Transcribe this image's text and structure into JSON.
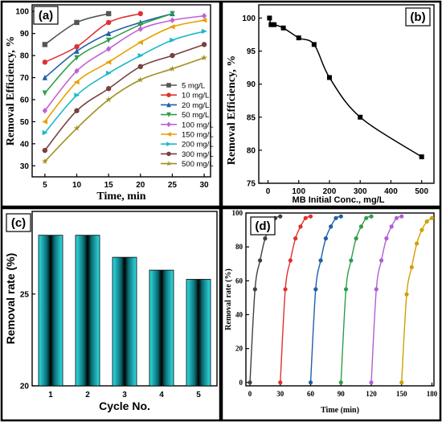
{
  "chart_data": [
    {
      "panel": "(a)",
      "type": "line",
      "xlabel": "Time, min",
      "ylabel": "Removal Efficiency, %",
      "x_ticks": [
        5,
        10,
        15,
        20,
        25,
        30
      ],
      "y_ticks": [
        30,
        40,
        50,
        60,
        70,
        80,
        90,
        100
      ],
      "xlim": [
        3,
        31
      ],
      "ylim": [
        25,
        103
      ],
      "legend_position": "bottom-right",
      "series": [
        {
          "name": "5 mg/L",
          "color": "#555555",
          "marker": "square",
          "x": [
            5,
            10,
            15
          ],
          "values": [
            85,
            95,
            99
          ]
        },
        {
          "name": "10 mg/L",
          "color": "#e03030",
          "marker": "circle",
          "x": [
            5,
            10,
            15,
            20
          ],
          "values": [
            77,
            84,
            95,
            99
          ]
        },
        {
          "name": "20 mg/L",
          "color": "#1f5fa8",
          "marker": "triangle",
          "x": [
            5,
            10,
            15,
            20,
            25
          ],
          "values": [
            70,
            82,
            90,
            95,
            99
          ]
        },
        {
          "name": "50 mg/L",
          "color": "#2e9e4a",
          "marker": "tri-down",
          "x": [
            5,
            10,
            15,
            20,
            25
          ],
          "values": [
            63,
            79,
            87,
            94,
            99
          ]
        },
        {
          "name": "100 mg/L",
          "color": "#c060d8",
          "marker": "diamond",
          "x": [
            5,
            10,
            15,
            20,
            25,
            30
          ],
          "values": [
            55,
            73,
            83,
            92,
            96,
            98
          ]
        },
        {
          "name": "150 mg/L",
          "color": "#e8a000",
          "marker": "tri-left",
          "x": [
            5,
            10,
            15,
            20,
            25,
            30
          ],
          "values": [
            50,
            68,
            77,
            86,
            93,
            96
          ]
        },
        {
          "name": "200 mg/L",
          "color": "#20b8c8",
          "marker": "tri-right",
          "x": [
            5,
            10,
            15,
            20,
            25,
            30
          ],
          "values": [
            45,
            62,
            72,
            80,
            87,
            91
          ]
        },
        {
          "name": "300 mg/L",
          "color": "#7a4040",
          "marker": "hexagon",
          "x": [
            5,
            10,
            15,
            20,
            25,
            30
          ],
          "values": [
            37,
            55,
            65,
            75,
            80,
            85
          ]
        },
        {
          "name": "500 mg/L",
          "color": "#a09020",
          "marker": "star",
          "x": [
            5,
            10,
            15,
            20,
            25,
            30
          ],
          "values": [
            32,
            47,
            60,
            69,
            74,
            79
          ]
        }
      ]
    },
    {
      "panel": "(b)",
      "type": "scatter",
      "xlabel": "MB Initial Conc., mg/L",
      "ylabel": "Removal Efficiency, %",
      "x_ticks": [
        0,
        100,
        200,
        300,
        400,
        500
      ],
      "y_ticks": [
        75,
        80,
        85,
        90,
        95,
        100
      ],
      "xlim": [
        -30,
        540
      ],
      "ylim": [
        75,
        102
      ],
      "series": [
        {
          "color": "#000000",
          "marker": "square",
          "x": [
            5,
            10,
            20,
            50,
            100,
            150,
            200,
            300,
            500
          ],
          "values": [
            100,
            99,
            99,
            98.5,
            97,
            96,
            91,
            85,
            79
          ]
        }
      ]
    },
    {
      "panel": "(c)",
      "type": "bar",
      "xlabel": "Cycle No.",
      "ylabel": "Removal rate (%)",
      "categories": [
        "1",
        "2",
        "3",
        "4",
        "5"
      ],
      "y_ticks": [
        20,
        25
      ],
      "ylim": [
        20,
        29.5
      ],
      "values": [
        28.2,
        28.2,
        27.0,
        26.3,
        25.8
      ],
      "bar_color": "#2fe0e8"
    },
    {
      "panel": "(d)",
      "type": "line",
      "xlabel": "Time (min)",
      "ylabel": "Removal rate (%)",
      "x_ticks": [
        0,
        30,
        60,
        90,
        120,
        150,
        180
      ],
      "y_ticks": [
        0,
        20,
        40,
        60,
        80,
        100
      ],
      "xlim": [
        -4,
        182
      ],
      "ylim": [
        -2,
        100
      ],
      "series": [
        {
          "color": "#404040",
          "x": [
            0,
            5,
            10,
            15,
            20,
            25,
            30
          ],
          "values": [
            0,
            55,
            72,
            85,
            92,
            97,
            98
          ]
        },
        {
          "color": "#e03030",
          "x": [
            30,
            35,
            40,
            45,
            50,
            55,
            60
          ],
          "values": [
            0,
            55,
            72,
            85,
            92,
            97,
            98
          ]
        },
        {
          "color": "#1f5fa8",
          "x": [
            60,
            65,
            70,
            75,
            80,
            85,
            90
          ],
          "values": [
            0,
            55,
            72,
            85,
            92,
            97,
            98
          ]
        },
        {
          "color": "#2e9e4a",
          "x": [
            90,
            95,
            100,
            105,
            110,
            115,
            120
          ],
          "values": [
            0,
            55,
            72,
            85,
            92,
            97,
            98
          ]
        },
        {
          "color": "#b060d0",
          "x": [
            120,
            125,
            130,
            135,
            140,
            145,
            150
          ],
          "values": [
            0,
            55,
            72,
            85,
            92,
            97,
            98
          ]
        },
        {
          "color": "#d0a000",
          "x": [
            150,
            155,
            160,
            165,
            170,
            175,
            180
          ],
          "values": [
            0,
            52,
            68,
            82,
            90,
            95,
            97
          ]
        }
      ]
    }
  ]
}
